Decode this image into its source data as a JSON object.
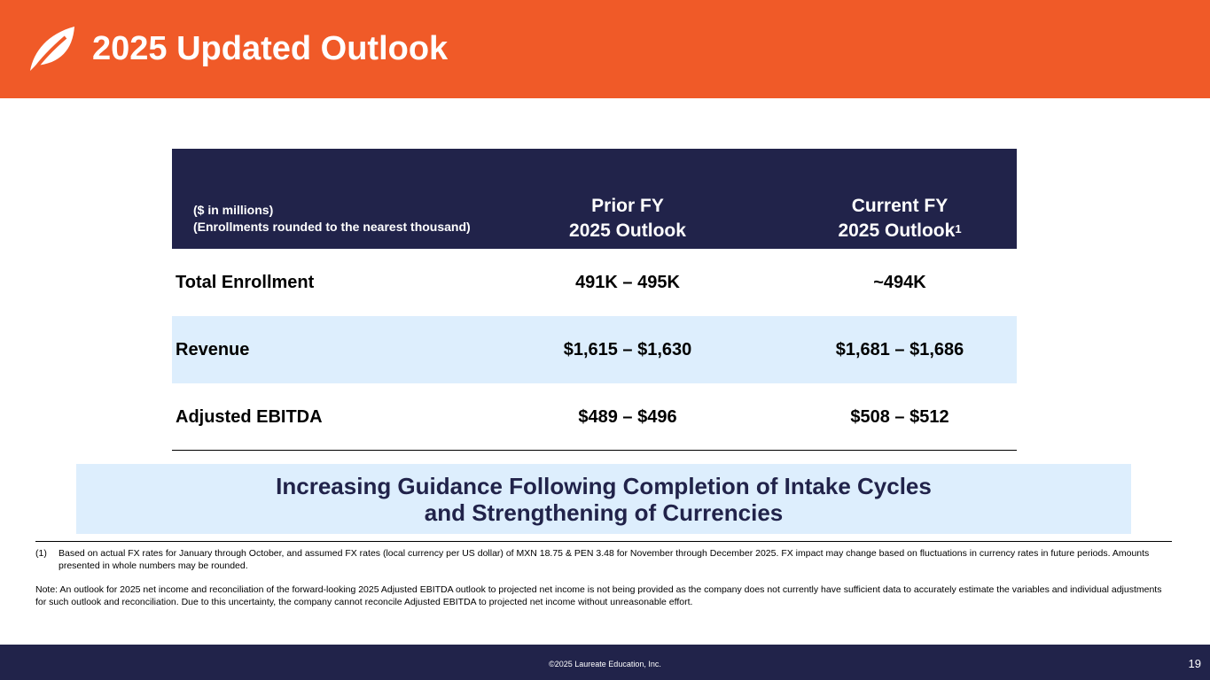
{
  "header": {
    "title": "2025 Updated Outlook",
    "logo_icon": "leaf-logo-icon",
    "background_color": "#f05a28"
  },
  "table": {
    "note_line1": "($ in millions)",
    "note_line2": "(Enrollments rounded to the nearest thousand)",
    "columns": {
      "prior_line1": "Prior FY",
      "prior_line2": "2025 Outlook",
      "current_line1": "Current FY",
      "current_line2": "2025 Outlook",
      "current_footnote_marker": "1"
    },
    "rows": [
      {
        "label": "Total Enrollment",
        "prior": "491K – 495K",
        "current": "~494K"
      },
      {
        "label": "Revenue",
        "prior": "$1,615 – $1,630",
        "current": "$1,681 – $1,686"
      },
      {
        "label": "Adjusted EBITDA",
        "prior": "$489 – $496",
        "current": "$508 – $512"
      }
    ],
    "header_color": "#21234a",
    "alt_row_color": "#ddeefd"
  },
  "callout": {
    "line1": "Increasing Guidance Following Completion of Intake Cycles",
    "line2": "and Strengthening of Currencies"
  },
  "footnotes": {
    "fn1_number": "(1)",
    "fn1_text": "Based on actual FX rates for January through October, and assumed FX rates (local currency per US dollar) of MXN 18.75 & PEN 3.48 for November through December 2025. FX impact may change based on fluctuations in currency rates in future periods. Amounts presented in whole numbers may be rounded.",
    "note": "Note: An outlook for 2025 net income and reconciliation of the forward-looking 2025 Adjusted EBITDA outlook to projected net income is not being provided as the company does not currently have sufficient data to accurately estimate the variables and individual adjustments for such outlook and reconciliation.  Due to this uncertainty, the company cannot reconcile Adjusted EBITDA to projected net income without unreasonable effort."
  },
  "footer": {
    "copyright": "©2025 Laureate Education, Inc.",
    "page_number": "19"
  }
}
